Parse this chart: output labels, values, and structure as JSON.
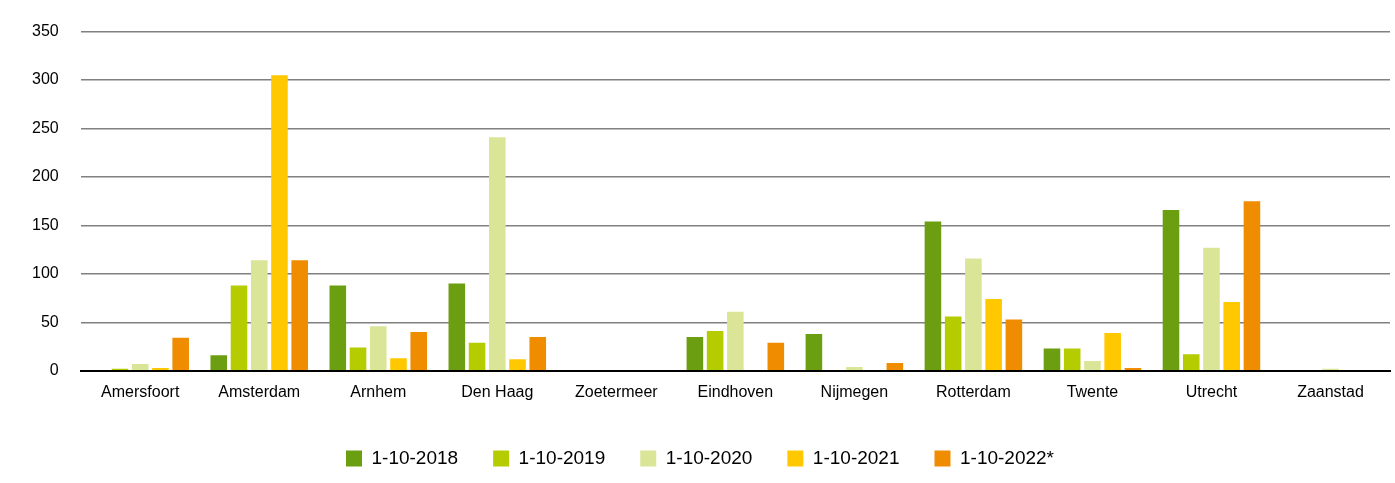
{
  "chart_data": {
    "type": "bar",
    "categories": [
      "Amersfoort",
      "Amsterdam",
      "Arnhem",
      "Den Haag",
      "Zoetermeer",
      "Eindhoven",
      "Nijmegen",
      "Rotterdam",
      "Twente",
      "Utrecht",
      "Zaanstad"
    ],
    "series": [
      {
        "name": "1-10-2018",
        "color": "#6b9e10",
        "values": [
          0,
          16,
          88,
          90,
          0,
          35,
          38,
          154,
          23,
          166,
          0
        ]
      },
      {
        "name": "1-10-2019",
        "color": "#b5cc00",
        "values": [
          2,
          88,
          24,
          29,
          0,
          41,
          0,
          56,
          23,
          17,
          0
        ]
      },
      {
        "name": "1-10-2020",
        "color": "#dbe598",
        "values": [
          7,
          114,
          46,
          241,
          0,
          61,
          4,
          116,
          10,
          127,
          2
        ]
      },
      {
        "name": "1-10-2021",
        "color": "#ffc800",
        "values": [
          3,
          305,
          13,
          12,
          0,
          0,
          0,
          74,
          39,
          71,
          null
        ]
      },
      {
        "name": "1-10-2022*",
        "color": "#f08c00",
        "values": [
          34,
          114,
          40,
          35,
          0,
          29,
          8,
          53,
          3,
          175,
          0
        ]
      }
    ],
    "ylim": [
      0,
      350
    ],
    "yticks": [
      0,
      50,
      100,
      150,
      200,
      250,
      300,
      350
    ],
    "grid": "y",
    "legend": "bottom"
  }
}
